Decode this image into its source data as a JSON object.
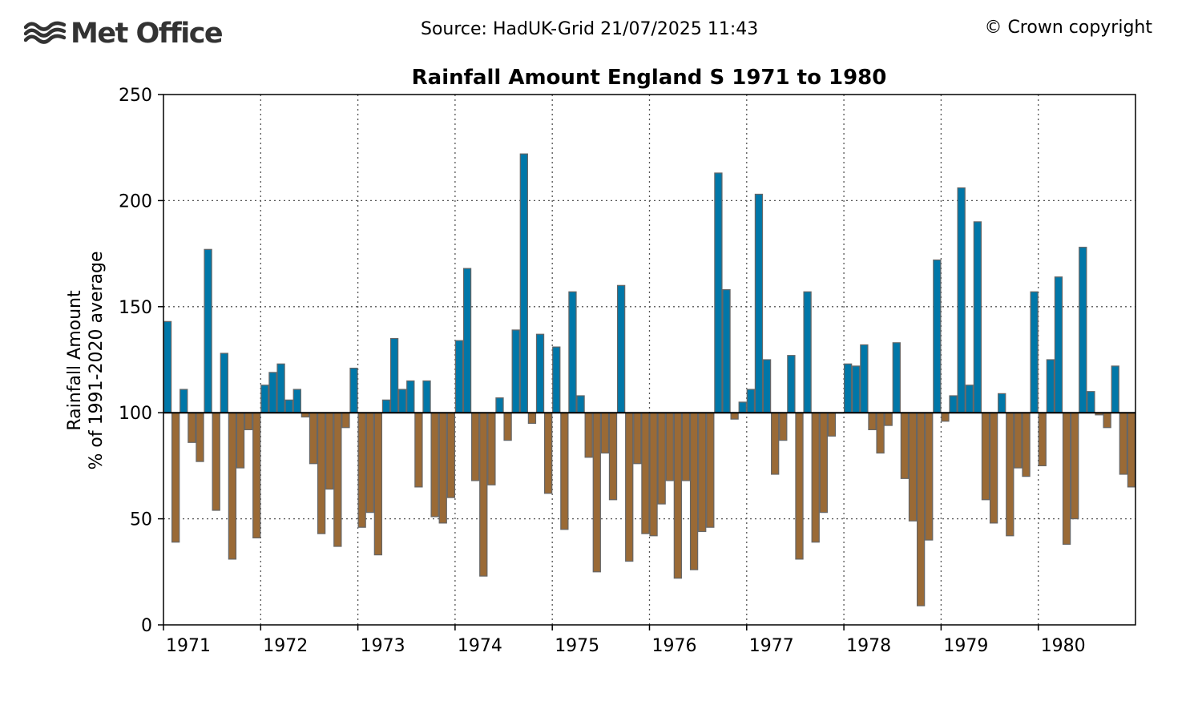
{
  "header": {
    "logo_text": "Met Office",
    "source": "Source: HadUK-Grid 21/07/2025 11:43",
    "copyright": "© Crown copyright"
  },
  "colors": {
    "above": "#0077a8",
    "below": "#9a6a36",
    "bar_edge": "#666666",
    "baseline": "#000000",
    "grid": "#555555",
    "logo": "#333333"
  },
  "chart_data": {
    "type": "bar",
    "title": "Rainfall Amount England S 1971 to 1980",
    "ylabel_line1": "Rainfall Amount",
    "ylabel_line2": "% of 1991-2020 average",
    "baseline": 100,
    "ylim": [
      0,
      250
    ],
    "yticks": [
      0,
      50,
      100,
      150,
      200,
      250
    ],
    "x_start": "1971-01",
    "xticks": [
      "1971",
      "1972",
      "1973",
      "1974",
      "1975",
      "1976",
      "1977",
      "1978",
      "1979",
      "1980"
    ],
    "grid": true,
    "values": [
      143,
      39,
      111,
      86,
      77,
      177,
      54,
      128,
      31,
      74,
      92,
      41,
      113,
      119,
      123,
      106,
      111,
      98,
      76,
      43,
      64,
      37,
      93,
      121,
      46,
      53,
      33,
      106,
      135,
      111,
      115,
      65,
      115,
      51,
      48,
      60,
      134,
      168,
      68,
      23,
      66,
      107,
      87,
      139,
      222,
      95,
      137,
      62,
      131,
      45,
      157,
      108,
      79,
      25,
      81,
      59,
      160,
      30,
      76,
      43,
      42,
      57,
      68,
      22,
      68,
      26,
      44,
      46,
      213,
      158,
      97,
      105,
      111,
      203,
      125,
      71,
      87,
      127,
      31,
      157,
      39,
      53,
      89,
      100,
      123,
      122,
      132,
      92,
      81,
      94,
      133,
      69,
      49,
      9,
      40,
      172,
      96,
      108,
      206,
      113,
      190,
      59,
      48,
      109,
      42,
      74,
      70,
      157,
      75,
      125,
      164,
      38,
      50,
      178,
      110,
      99,
      93,
      122,
      71,
      65
    ]
  }
}
